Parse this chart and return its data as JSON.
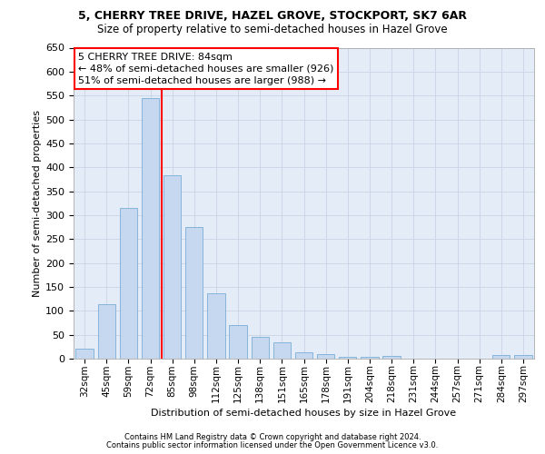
{
  "title1": "5, CHERRY TREE DRIVE, HAZEL GROVE, STOCKPORT, SK7 6AR",
  "title2": "Size of property relative to semi-detached houses in Hazel Grove",
  "xlabel": "Distribution of semi-detached houses by size in Hazel Grove",
  "ylabel": "Number of semi-detached properties",
  "footnote1": "Contains HM Land Registry data © Crown copyright and database right 2024.",
  "footnote2": "Contains public sector information licensed under the Open Government Licence v3.0.",
  "categories": [
    "32sqm",
    "45sqm",
    "59sqm",
    "72sqm",
    "85sqm",
    "98sqm",
    "112sqm",
    "125sqm",
    "138sqm",
    "151sqm",
    "165sqm",
    "178sqm",
    "191sqm",
    "204sqm",
    "218sqm",
    "231sqm",
    "244sqm",
    "257sqm",
    "271sqm",
    "284sqm",
    "297sqm"
  ],
  "values": [
    20,
    113,
    315,
    545,
    383,
    275,
    136,
    70,
    46,
    35,
    14,
    10,
    4,
    3,
    6,
    0,
    0,
    0,
    0,
    7,
    7
  ],
  "bar_color": "#c5d8f0",
  "bar_edge_color": "#7aaed6",
  "vline_bar_index": 3,
  "vline_color": "red",
  "annotation_line1": "5 CHERRY TREE DRIVE: 84sqm",
  "annotation_line2": "← 48% of semi-detached houses are smaller (926)",
  "annotation_line3": "51% of semi-detached houses are larger (988) →",
  "ylim": [
    0,
    650
  ],
  "yticks": [
    0,
    50,
    100,
    150,
    200,
    250,
    300,
    350,
    400,
    450,
    500,
    550,
    600,
    650
  ],
  "grid_color": "#c8d4e4",
  "bg_color": "#e4ecf8",
  "title1_fontsize": 9,
  "title2_fontsize": 8.5,
  "ylabel_fontsize": 8,
  "xlabel_fontsize": 8,
  "tick_fontsize": 8,
  "annot_fontsize": 8
}
